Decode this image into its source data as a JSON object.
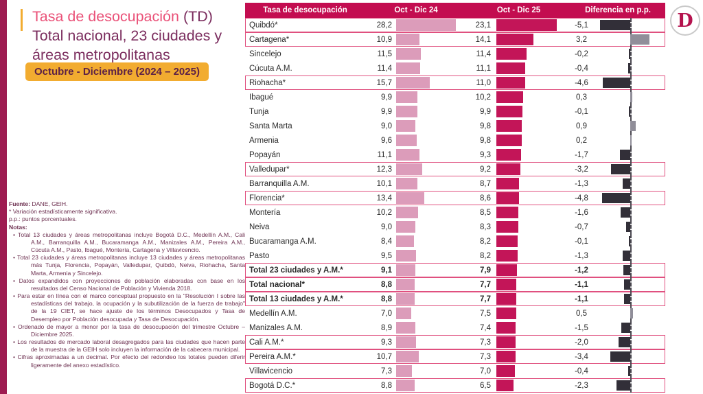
{
  "header": {
    "title_highlight": "Tasa de desocupación",
    "title_suffix": " (TD)",
    "title_line2": "Total nacional, 23 ciudades y",
    "title_line3": "áreas metropolitanas",
    "period_banner": "Octubre - Diciembre (2024 – 2025)"
  },
  "logo": {
    "letter": "D"
  },
  "notes": {
    "fuente_label": "Fuente:",
    "fuente_value": " DANE, GEIH.",
    "significance": "* Variación estadísticamente significativa.",
    "pp": "p.p.: puntos porcentuales.",
    "notas_label": "Notas:",
    "bullets": [
      "Total 13 ciudades y áreas metropolitanas incluye Bogotá D.C., Medellín A.M., Cali A.M., Barranquilla A.M., Bucaramanga A.M., Manizales A.M., Pereira A.M., Cúcuta A.M., Pasto, Ibagué, Montería, Cartagena y Villavicencio.",
      "Total 23 ciudades y áreas metropolitanas incluye 13 ciudades y áreas metropolitanas más Tunja, Florencia, Popayán, Valledupar, Quibdó, Neiva, Riohacha, Santa Marta, Armenia y Sincelejo.",
      "Datos expandidos con proyecciones de población elaboradas con base en los resultados del Censo Nacional de Población y Vivienda 2018.",
      "Para estar en línea con el marco conceptual propuesto en la \"Resolución I sobre las estadísticas del trabajo, la ocupación y la subutilización de la fuerza de trabajo\" de la 19 CIET, se hace ajuste de los términos Desocupados y Tasa de Desempleo por Población desocupada y Tasa de Desocupación.",
      "Ordenado de mayor a menor por la tasa de desocupación del trimestre Octubre – Diciembre 2025.",
      "Los resultados de mercado laboral desagregados para las ciudades que hacen parte de la muestra de la GEIH solo incluyen la información de la cabecera municipal.",
      "Cifras aproximadas a un decimal. Por efecto del redondeo los totales pueden diferir ligeramente del anexo estadístico."
    ]
  },
  "colors": {
    "header_bg": "#c30d50",
    "bar_2024": "#dc9cba",
    "bar_2025": "#c31558",
    "diff_negative": "#322f38",
    "diff_positive": "#908e99",
    "significant_border": "#e0507f",
    "banner_bg": "#f2ac30",
    "title_pink": "#ea5178",
    "title_purple": "#7b2d5e"
  },
  "chart_data": {
    "type": "bar",
    "title": "Tasa de desocupación (TD) Total nacional, 23 ciudades y áreas metropolitanas, Octubre - Diciembre (2024 – 2025)",
    "columns": [
      "Tasa de desocupación",
      "Oct - Dic 24",
      "Oct - Dic 25",
      "Diferencia en p.p."
    ],
    "legend_note": "* = variación estadísticamente significativa (fila resaltada)",
    "rows": [
      {
        "name": "Quibdó*",
        "d24": "28,2",
        "d25": "23,1",
        "ddiff": "-5,1",
        "v24": 28.2,
        "v25": 23.1,
        "vdiff": -5.1,
        "significant": true,
        "bold": false
      },
      {
        "name": "Cartagena*",
        "d24": "10,9",
        "d25": "14,1",
        "ddiff": "3,2",
        "v24": 10.9,
        "v25": 14.1,
        "vdiff": 3.2,
        "significant": true,
        "bold": false
      },
      {
        "name": "Sincelejo",
        "d24": "11,5",
        "d25": "11,4",
        "ddiff": "-0,2",
        "v24": 11.5,
        "v25": 11.4,
        "vdiff": -0.2,
        "significant": false,
        "bold": false
      },
      {
        "name": "Cúcuta A.M.",
        "d24": "11,4",
        "d25": "11,1",
        "ddiff": "-0,4",
        "v24": 11.4,
        "v25": 11.1,
        "vdiff": -0.4,
        "significant": false,
        "bold": false
      },
      {
        "name": "Riohacha*",
        "d24": "15,7",
        "d25": "11,0",
        "ddiff": "-4,6",
        "v24": 15.7,
        "v25": 11.0,
        "vdiff": -4.6,
        "significant": true,
        "bold": false
      },
      {
        "name": "Ibagué",
        "d24": "9,9",
        "d25": "10,2",
        "ddiff": "0,3",
        "v24": 9.9,
        "v25": 10.2,
        "vdiff": 0.3,
        "significant": false,
        "bold": false
      },
      {
        "name": "Tunja",
        "d24": "9,9",
        "d25": "9,9",
        "ddiff": "-0,1",
        "v24": 9.9,
        "v25": 9.9,
        "vdiff": -0.1,
        "significant": false,
        "bold": false
      },
      {
        "name": "Santa Marta",
        "d24": "9,0",
        "d25": "9,8",
        "ddiff": "0,9",
        "v24": 9.0,
        "v25": 9.8,
        "vdiff": 0.9,
        "significant": false,
        "bold": false
      },
      {
        "name": "Armenia",
        "d24": "9,6",
        "d25": "9,8",
        "ddiff": "0,2",
        "v24": 9.6,
        "v25": 9.8,
        "vdiff": 0.2,
        "significant": false,
        "bold": false
      },
      {
        "name": "Popayán",
        "d24": "11,1",
        "d25": "9,3",
        "ddiff": "-1,7",
        "v24": 11.1,
        "v25": 9.3,
        "vdiff": -1.7,
        "significant": false,
        "bold": false
      },
      {
        "name": "Valledupar*",
        "d24": "12,3",
        "d25": "9,2",
        "ddiff": "-3,2",
        "v24": 12.3,
        "v25": 9.2,
        "vdiff": -3.2,
        "significant": true,
        "bold": false
      },
      {
        "name": "Barranquilla A.M.",
        "d24": "10,1",
        "d25": "8,7",
        "ddiff": "-1,3",
        "v24": 10.1,
        "v25": 8.7,
        "vdiff": -1.3,
        "significant": false,
        "bold": false
      },
      {
        "name": "Florencia*",
        "d24": "13,4",
        "d25": "8,6",
        "ddiff": "-4,8",
        "v24": 13.4,
        "v25": 8.6,
        "vdiff": -4.8,
        "significant": true,
        "bold": false
      },
      {
        "name": "Montería",
        "d24": "10,2",
        "d25": "8,5",
        "ddiff": "-1,6",
        "v24": 10.2,
        "v25": 8.5,
        "vdiff": -1.6,
        "significant": false,
        "bold": false
      },
      {
        "name": "Neiva",
        "d24": "9,0",
        "d25": "8,3",
        "ddiff": "-0,7",
        "v24": 9.0,
        "v25": 8.3,
        "vdiff": -0.7,
        "significant": false,
        "bold": false
      },
      {
        "name": "Bucaramanga A.M.",
        "d24": "8,4",
        "d25": "8,2",
        "ddiff": "-0,1",
        "v24": 8.4,
        "v25": 8.2,
        "vdiff": -0.1,
        "significant": false,
        "bold": false
      },
      {
        "name": "Pasto",
        "d24": "9,5",
        "d25": "8,2",
        "ddiff": "-1,3",
        "v24": 9.5,
        "v25": 8.2,
        "vdiff": -1.3,
        "significant": false,
        "bold": false
      },
      {
        "name": "Total 23 ciudades y A.M.*",
        "d24": "9,1",
        "d25": "7,9",
        "ddiff": "-1,2",
        "v24": 9.1,
        "v25": 7.9,
        "vdiff": -1.2,
        "significant": true,
        "bold": true
      },
      {
        "name": "Total nacional*",
        "d24": "8,8",
        "d25": "7,7",
        "ddiff": "-1,1",
        "v24": 8.8,
        "v25": 7.7,
        "vdiff": -1.1,
        "significant": true,
        "bold": true
      },
      {
        "name": "Total 13 ciudades y A.M.*",
        "d24": "8,8",
        "d25": "7,7",
        "ddiff": "-1,1",
        "v24": 8.8,
        "v25": 7.7,
        "vdiff": -1.1,
        "significant": true,
        "bold": true
      },
      {
        "name": "Medellín A.M.",
        "d24": "7,0",
        "d25": "7,5",
        "ddiff": "0,5",
        "v24": 7.0,
        "v25": 7.5,
        "vdiff": 0.5,
        "significant": false,
        "bold": false
      },
      {
        "name": "Manizales A.M.",
        "d24": "8,9",
        "d25": "7,4",
        "ddiff": "-1,5",
        "v24": 8.9,
        "v25": 7.4,
        "vdiff": -1.5,
        "significant": false,
        "bold": false
      },
      {
        "name": "Cali A.M.*",
        "d24": "9,3",
        "d25": "7,3",
        "ddiff": "-2,0",
        "v24": 9.3,
        "v25": 7.3,
        "vdiff": -2.0,
        "significant": true,
        "bold": false
      },
      {
        "name": "Pereira A.M.*",
        "d24": "10,7",
        "d25": "7,3",
        "ddiff": "-3,4",
        "v24": 10.7,
        "v25": 7.3,
        "vdiff": -3.4,
        "significant": true,
        "bold": false
      },
      {
        "name": "Villavicencio",
        "d24": "7,3",
        "d25": "7,0",
        "ddiff": "-0,4",
        "v24": 7.3,
        "v25": 7.0,
        "vdiff": -0.4,
        "significant": false,
        "bold": false
      },
      {
        "name": "Bogotá D.C.*",
        "d24": "8,8",
        "d25": "6,5",
        "ddiff": "-2,3",
        "v24": 8.8,
        "v25": 6.5,
        "vdiff": -2.3,
        "significant": true,
        "bold": false
      }
    ]
  }
}
